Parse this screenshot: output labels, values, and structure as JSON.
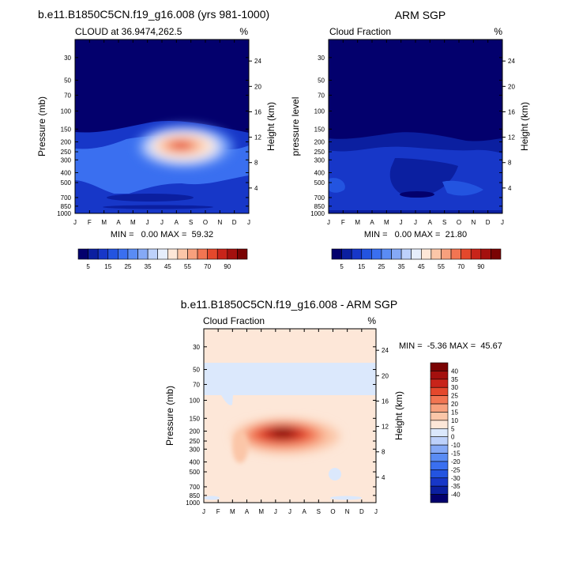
{
  "page": {
    "top_left_title": "b.e11.B1850C5CN.f19_g16.008 (yrs 981-1000)",
    "top_right_title": "ARM SGP",
    "bottom_title": "b.e11.B1850C5CN.f19_g16.008 - ARM SGP"
  },
  "colors": {
    "seq": [
      "#03006d",
      "#0b1fa0",
      "#1737c8",
      "#2354e0",
      "#3a6ff0",
      "#5a8cf4",
      "#85a9f6",
      "#bdd1fb",
      "#e6eefc",
      "#fde7d8",
      "#fbc6a8",
      "#f7a07d",
      "#f27552",
      "#e4482c",
      "#c8241a",
      "#a4100e",
      "#7a0303"
    ],
    "div": [
      "#03006d",
      "#0b1fa0",
      "#1737c8",
      "#2354e0",
      "#3a6ff0",
      "#5a8cf4",
      "#85a9f6",
      "#bdd1fb",
      "#dbe8fc",
      "#fde7d8",
      "#fbc6a8",
      "#f7a07d",
      "#f27552",
      "#e4482c",
      "#c8241a",
      "#a4100e",
      "#7a0303"
    ]
  },
  "chart_data": [
    {
      "type": "heatmap",
      "title": "CLOUD at 36.9474,262.5",
      "units": "%",
      "xlabel": "",
      "ylabel": "Pressure (mb)",
      "ylabel_right": "Height (km)",
      "x_ticks": [
        "J",
        "F",
        "M",
        "A",
        "M",
        "J",
        "J",
        "A",
        "S",
        "O",
        "N",
        "D",
        "J"
      ],
      "y_ticks": [
        30,
        50,
        70,
        100,
        150,
        200,
        250,
        300,
        400,
        500,
        700,
        850,
        1000
      ],
      "y_log_scale": true,
      "ylim": [
        1000,
        20
      ],
      "height_ticks_km": [
        24,
        20,
        16,
        12,
        8,
        4
      ],
      "min_max_text": "MIN =   0.00 MAX =  59.32",
      "min": 0.0,
      "max": 59.32,
      "colorbar_ticks": [
        "5",
        "15",
        "25",
        "35",
        "45",
        "55",
        "70",
        "90"
      ]
    },
    {
      "type": "heatmap",
      "title": "Cloud Fraction",
      "units": "%",
      "xlabel": "",
      "ylabel": "pressure level",
      "ylabel_right": "Height (km)",
      "x_ticks": [
        "J",
        "F",
        "M",
        "A",
        "M",
        "J",
        "J",
        "A",
        "S",
        "O",
        "N",
        "D",
        "J"
      ],
      "y_ticks": [
        30,
        50,
        70,
        100,
        150,
        200,
        250,
        300,
        400,
        500,
        700,
        850,
        1000
      ],
      "y_log_scale": true,
      "ylim": [
        1000,
        20
      ],
      "height_ticks_km": [
        24,
        20,
        16,
        12,
        8,
        4
      ],
      "min_max_text": "MIN =   0.00 MAX =  21.80",
      "min": 0.0,
      "max": 21.8,
      "colorbar_ticks": [
        "5",
        "15",
        "25",
        "35",
        "45",
        "55",
        "70",
        "90"
      ]
    },
    {
      "type": "heatmap",
      "title": "Cloud Fraction",
      "units": "%",
      "xlabel": "",
      "ylabel": "Pressure (mb)",
      "ylabel_right": "Height (km)",
      "x_ticks": [
        "J",
        "F",
        "M",
        "A",
        "M",
        "J",
        "J",
        "A",
        "S",
        "O",
        "N",
        "D",
        "J"
      ],
      "y_ticks": [
        30,
        50,
        70,
        100,
        150,
        200,
        250,
        300,
        400,
        500,
        700,
        850,
        1000
      ],
      "y_log_scale": true,
      "ylim": [
        1000,
        20
      ],
      "height_ticks_km": [
        24,
        20,
        16,
        12,
        8,
        4
      ],
      "min_max_text": "MIN =  -5.36 MAX =  45.67",
      "min": -5.36,
      "max": 45.67,
      "colorbar_ticks": [
        "40",
        "35",
        "30",
        "25",
        "20",
        "15",
        "10",
        "5",
        "0",
        "-10",
        "-15",
        "-20",
        "-25",
        "-30",
        "-35",
        "-40"
      ]
    }
  ]
}
